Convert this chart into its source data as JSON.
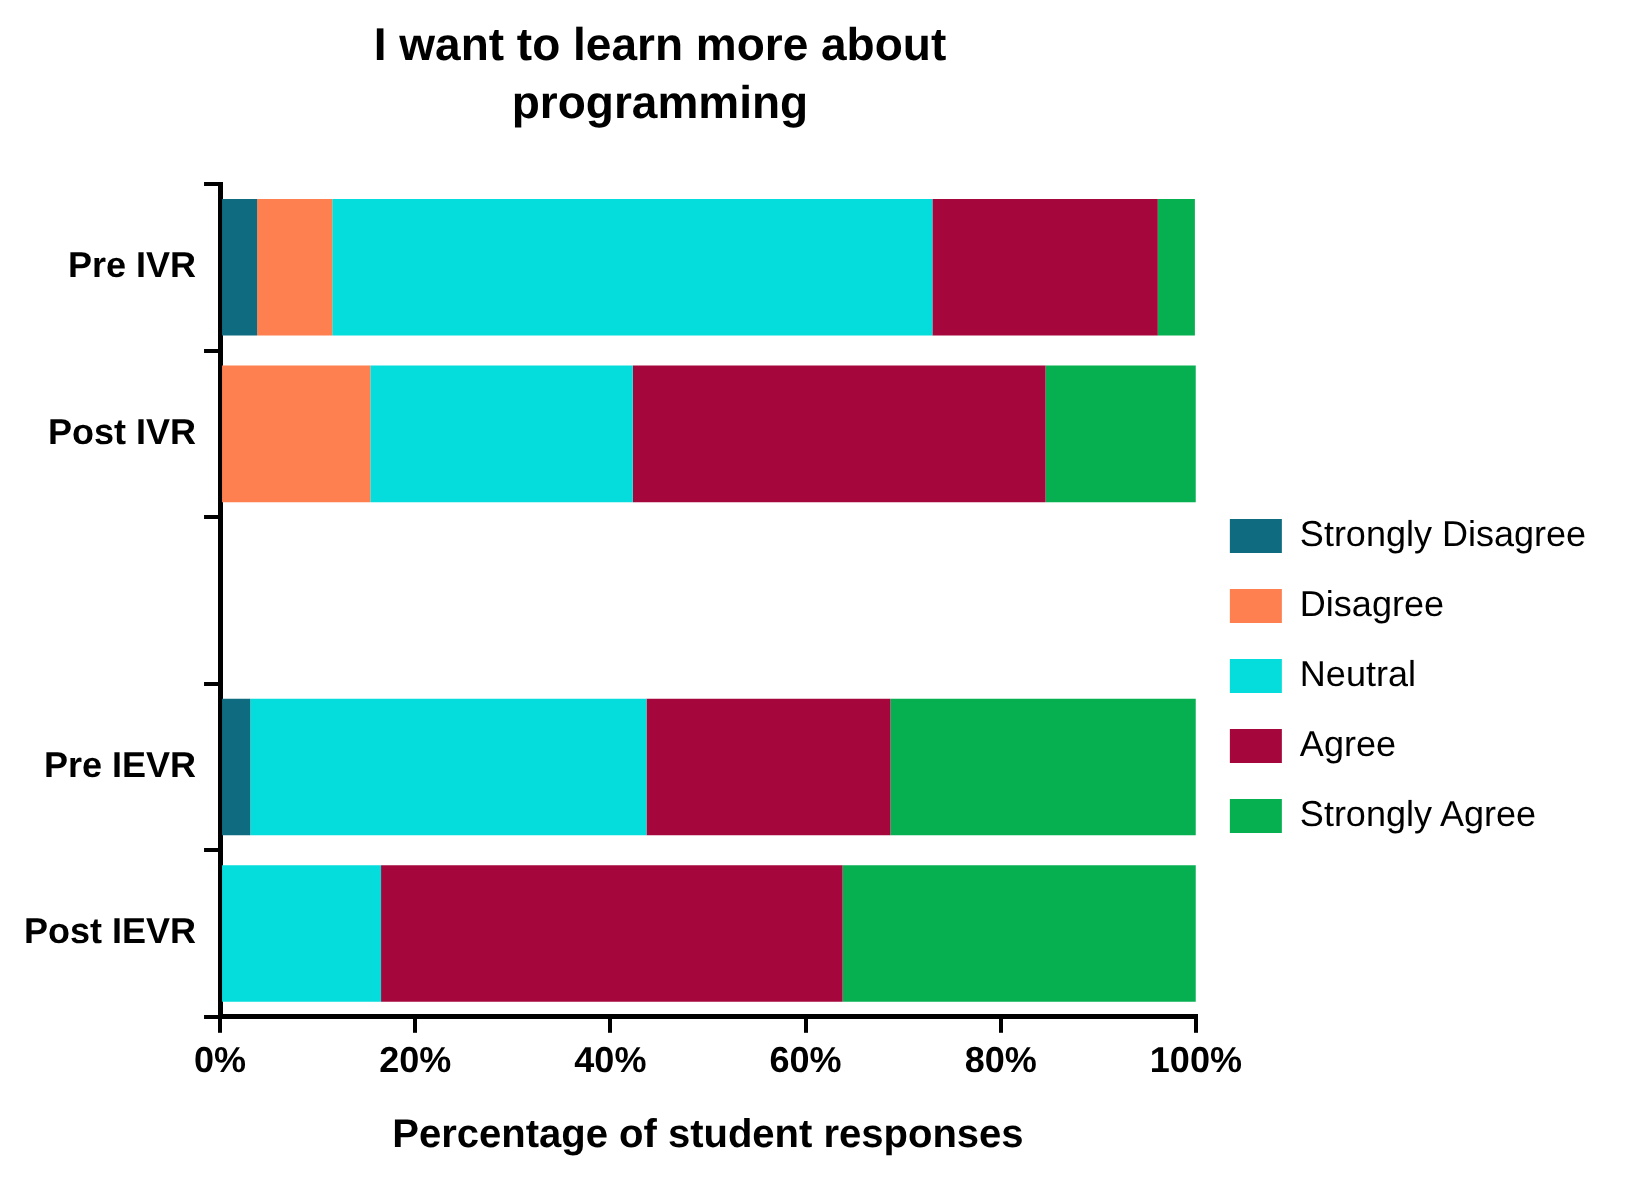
{
  "chart_data": {
    "type": "bar",
    "orientation": "horizontal",
    "stacked": true,
    "title": "I want to learn more about programming",
    "xlabel": "Percentage of student responses",
    "categories": [
      "Pre IVR",
      "Post IVR",
      null,
      "Pre IEVR",
      "Post IEVR"
    ],
    "series": [
      {
        "name": "Strongly Disagree",
        "color": "#0e6b80",
        "values": [
          3.8,
          0,
          null,
          3.1,
          0
        ]
      },
      {
        "name": "Disagree",
        "color": "#fe7f4f",
        "values": [
          7.7,
          15.4,
          null,
          0,
          0
        ]
      },
      {
        "name": "Neutral",
        "color": "#05dcdc",
        "values": [
          61.5,
          26.9,
          null,
          40.6,
          16.5
        ]
      },
      {
        "name": "Agree",
        "color": "#a5073c",
        "values": [
          23.1,
          42.3,
          null,
          25,
          47.3
        ]
      },
      {
        "name": "Strongly Agree",
        "color": "#06b050",
        "values": [
          3.8,
          15.4,
          null,
          31.3,
          36.2
        ]
      }
    ],
    "xlim": [
      0,
      100
    ],
    "xticks": [
      {
        "value": 0,
        "label": "0%"
      },
      {
        "value": 20,
        "label": "20%"
      },
      {
        "value": 40,
        "label": "40%"
      },
      {
        "value": 60,
        "label": "60%"
      },
      {
        "value": 80,
        "label": "80%"
      },
      {
        "value": 100,
        "label": "100%"
      }
    ],
    "grid": false,
    "legend": "right"
  }
}
